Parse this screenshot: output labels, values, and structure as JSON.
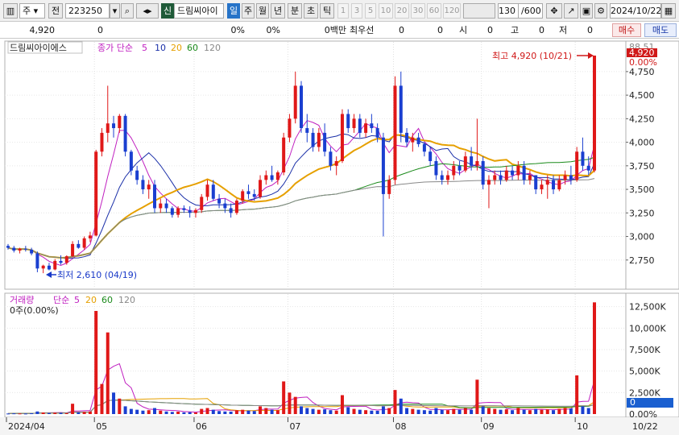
{
  "toolbar": {
    "market": "주",
    "period_prefix": "전",
    "code": "223250",
    "badge": "신",
    "stock_name": "드림씨아이",
    "periods": [
      "일",
      "주",
      "월",
      "년",
      "분",
      "초",
      "틱"
    ],
    "active_period": "일",
    "intervals": [
      "1",
      "3",
      "5",
      "10",
      "20",
      "30",
      "60",
      "120"
    ],
    "count": "130",
    "count_total": "/600",
    "date": "2024/10/22"
  },
  "info": {
    "price": "4,920",
    "change": "0",
    "rate1": "0%",
    "rate2": "0%",
    "volume_unit": "0백만",
    "priority_label": "최우선",
    "priority_value": "0",
    "priority_value2": "0",
    "open_label": "시",
    "open_value": "0",
    "high_label": "고",
    "high_value": "0",
    "low_label": "저",
    "low_value": "0",
    "buy": "매수",
    "sell": "매도"
  },
  "legend": {
    "name": "드림씨아이에스",
    "ma_title": "종가 단순",
    "ma": [
      "5",
      "10",
      "20",
      "60",
      "120"
    ],
    "ma_colors": [
      "#c020c0",
      "#1a2fa8",
      "#e6a000",
      "#1a8a1a",
      "#888888"
    ]
  },
  "volume_legend": {
    "title": "거래량",
    "ma_title": "단순",
    "ma": [
      "5",
      "20",
      "60",
      "120"
    ],
    "value": "0주(0.00%)"
  },
  "annotations": {
    "high": "최고 4,920 (10/21)",
    "low": "최저 2,610 (04/19)"
  },
  "price_axis": {
    "labels": [
      "4,750",
      "4,500",
      "4,250",
      "4,000",
      "3,750",
      "3,500",
      "3,250",
      "3,000",
      "2,750"
    ],
    "top_text": "88.51",
    "current": "4,920",
    "current_pct": "0.00%"
  },
  "volume_axis": {
    "labels": [
      "12,500K",
      "10,000K",
      "7,500K",
      "5,000K",
      "2,500K",
      "0.00%"
    ],
    "current": "0"
  },
  "date_axis": {
    "labels": [
      "2024/04",
      "05",
      "06",
      "07",
      "08",
      "09",
      "10"
    ],
    "last": "10/22"
  },
  "chart_data": {
    "type": "candlestick",
    "price_ylim": [
      2500,
      4920
    ],
    "volume_ylim": [
      0,
      13500
    ],
    "volume_unit": "K",
    "months": [
      "2024/04",
      "05",
      "06",
      "07",
      "08",
      "09",
      "10"
    ],
    "candles": [
      [
        2900,
        2920,
        2860,
        2880
      ],
      [
        2880,
        2900,
        2830,
        2850
      ],
      [
        2850,
        2880,
        2820,
        2870
      ],
      [
        2870,
        2900,
        2840,
        2860
      ],
      [
        2860,
        2880,
        2800,
        2820
      ],
      [
        2820,
        2840,
        2620,
        2660
      ],
      [
        2660,
        2700,
        2610,
        2690
      ],
      [
        2690,
        2720,
        2640,
        2650
      ],
      [
        2650,
        2760,
        2640,
        2740
      ],
      [
        2740,
        2800,
        2700,
        2720
      ],
      [
        2720,
        2800,
        2700,
        2790
      ],
      [
        2790,
        2950,
        2780,
        2920
      ],
      [
        2920,
        2960,
        2870,
        2880
      ],
      [
        2880,
        3000,
        2860,
        2980
      ],
      [
        2980,
        3050,
        2940,
        3010
      ],
      [
        3010,
        3920,
        3000,
        3900
      ],
      [
        3900,
        4150,
        3850,
        4100
      ],
      [
        4100,
        4600,
        4000,
        4200
      ],
      [
        4200,
        4280,
        4050,
        4150
      ],
      [
        4150,
        4300,
        4100,
        4280
      ],
      [
        4280,
        4300,
        3850,
        3900
      ],
      [
        3900,
        3920,
        3650,
        3700
      ],
      [
        3700,
        3750,
        3550,
        3600
      ],
      [
        3600,
        3650,
        3450,
        3500
      ],
      [
        3500,
        3600,
        3400,
        3550
      ],
      [
        3550,
        3600,
        3250,
        3300
      ],
      [
        3300,
        3400,
        3250,
        3350
      ],
      [
        3350,
        3400,
        3250,
        3300
      ],
      [
        3300,
        3320,
        3200,
        3230
      ],
      [
        3230,
        3320,
        3200,
        3300
      ],
      [
        3300,
        3330,
        3250,
        3280
      ],
      [
        3280,
        3320,
        3200,
        3250
      ],
      [
        3250,
        3300,
        3200,
        3280
      ],
      [
        3280,
        3450,
        3250,
        3420
      ],
      [
        3420,
        3600,
        3380,
        3550
      ],
      [
        3550,
        3600,
        3380,
        3400
      ],
      [
        3400,
        3450,
        3300,
        3350
      ],
      [
        3350,
        3400,
        3250,
        3300
      ],
      [
        3300,
        3350,
        3200,
        3250
      ],
      [
        3250,
        3400,
        3230,
        3380
      ],
      [
        3380,
        3500,
        3350,
        3480
      ],
      [
        3480,
        3550,
        3400,
        3450
      ],
      [
        3450,
        3500,
        3380,
        3420
      ],
      [
        3420,
        3650,
        3400,
        3600
      ],
      [
        3600,
        3700,
        3550,
        3650
      ],
      [
        3650,
        3750,
        3580,
        3600
      ],
      [
        3600,
        3700,
        3550,
        3680
      ],
      [
        3680,
        4100,
        3650,
        4050
      ],
      [
        4050,
        4300,
        4000,
        4250
      ],
      [
        4250,
        4750,
        4200,
        4600
      ],
      [
        4600,
        4650,
        4100,
        4150
      ],
      [
        4150,
        4300,
        4000,
        4100
      ],
      [
        4100,
        4150,
        3900,
        3950
      ],
      [
        3950,
        4150,
        3900,
        4100
      ],
      [
        4100,
        4200,
        3850,
        3900
      ],
      [
        3900,
        3950,
        3700,
        3750
      ],
      [
        3750,
        3850,
        3650,
        3800
      ],
      [
        3800,
        4350,
        3780,
        4300
      ],
      [
        4300,
        4350,
        4100,
        4150
      ],
      [
        4150,
        4300,
        4100,
        4250
      ],
      [
        4250,
        4300,
        4050,
        4100
      ],
      [
        4100,
        4250,
        4050,
        4200
      ],
      [
        4200,
        4300,
        4100,
        4150
      ],
      [
        4150,
        4200,
        4000,
        4050
      ],
      [
        4050,
        4100,
        3000,
        3450
      ],
      [
        3450,
        3650,
        3400,
        3600
      ],
      [
        3600,
        4700,
        3550,
        4600
      ],
      [
        4600,
        4750,
        4000,
        4100
      ],
      [
        4100,
        4150,
        3950,
        4000
      ],
      [
        4000,
        4100,
        3900,
        4050
      ],
      [
        4050,
        4100,
        3950,
        3980
      ],
      [
        3980,
        4000,
        3850,
        3900
      ],
      [
        3900,
        3950,
        3750,
        3800
      ],
      [
        3800,
        3850,
        3600,
        3650
      ],
      [
        3650,
        3700,
        3550,
        3600
      ],
      [
        3600,
        3700,
        3550,
        3650
      ],
      [
        3650,
        3800,
        3600,
        3750
      ],
      [
        3750,
        3800,
        3650,
        3700
      ],
      [
        3700,
        3900,
        3680,
        3850
      ],
      [
        3850,
        3950,
        3700,
        3750
      ],
      [
        3750,
        4250,
        3700,
        3800
      ],
      [
        3800,
        3850,
        3500,
        3550
      ],
      [
        3550,
        3650,
        3300,
        3600
      ],
      [
        3600,
        3700,
        3550,
        3650
      ],
      [
        3650,
        3700,
        3550,
        3600
      ],
      [
        3600,
        3750,
        3580,
        3700
      ],
      [
        3700,
        3750,
        3600,
        3650
      ],
      [
        3650,
        3800,
        3600,
        3750
      ],
      [
        3750,
        3800,
        3550,
        3600
      ],
      [
        3600,
        3700,
        3550,
        3650
      ],
      [
        3650,
        3650,
        3450,
        3500
      ],
      [
        3500,
        3600,
        3450,
        3550
      ],
      [
        3550,
        3650,
        3400,
        3600
      ],
      [
        3600,
        3650,
        3450,
        3500
      ],
      [
        3500,
        3650,
        3480,
        3600
      ],
      [
        3600,
        3700,
        3550,
        3650
      ],
      [
        3650,
        3750,
        3550,
        3600
      ],
      [
        3600,
        3950,
        3580,
        3900
      ],
      [
        3900,
        4050,
        3700,
        3750
      ],
      [
        3750,
        3850,
        3650,
        3700
      ],
      [
        3700,
        4920,
        3680,
        4920
      ]
    ],
    "volume": [
      60,
      80,
      70,
      60,
      90,
      300,
      180,
      120,
      150,
      140,
      110,
      1200,
      200,
      250,
      300,
      12000,
      3500,
      9500,
      2500,
      1800,
      900,
      600,
      500,
      400,
      450,
      700,
      400,
      300,
      250,
      280,
      200,
      220,
      180,
      600,
      700,
      500,
      350,
      300,
      280,
      450,
      500,
      400,
      350,
      900,
      700,
      500,
      450,
      3800,
      2500,
      2000,
      900,
      700,
      600,
      500,
      550,
      450,
      400,
      2200,
      800,
      600,
      500,
      450,
      400,
      380,
      900,
      700,
      2800,
      1800,
      700,
      600,
      500,
      450,
      400,
      700,
      500,
      450,
      600,
      500,
      700,
      500,
      4000,
      900,
      700,
      600,
      500,
      550,
      450,
      700,
      500,
      450,
      600,
      500,
      550,
      450,
      600,
      700,
      650,
      4500,
      900,
      700,
      13000
    ]
  }
}
